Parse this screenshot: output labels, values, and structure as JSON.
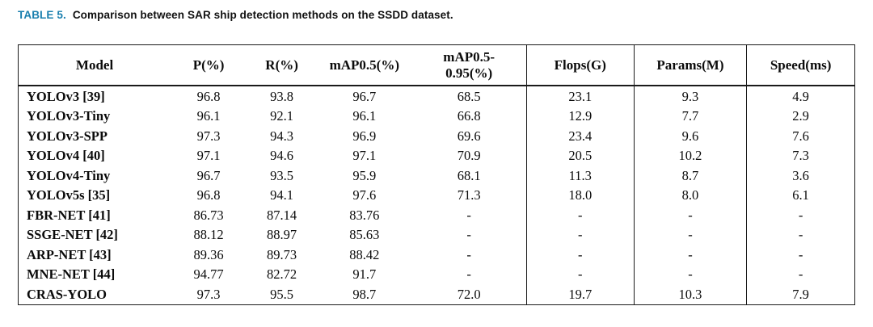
{
  "caption": {
    "label": "TABLE 5.",
    "text": "Comparison between SAR ship detection methods on the SSDD dataset."
  },
  "colors": {
    "caption_label": "#1a7fae",
    "text": "#0b0b0b",
    "border": "#1a1a1a"
  },
  "chart_data": {
    "type": "table",
    "title": "Comparison between SAR ship detection methods on the SSDD dataset",
    "columns": [
      "Model",
      "P(%)",
      "R(%)",
      "mAP0.5(%)",
      "mAP0.5-\n0.95(%)",
      "Flops(G)",
      "Params(M)",
      "Speed(ms)"
    ],
    "rows": [
      [
        "YOLOv3 [39]",
        "96.8",
        "93.8",
        "96.7",
        "68.5",
        "23.1",
        "9.3",
        "4.9"
      ],
      [
        "YOLOv3-Tiny",
        "96.1",
        "92.1",
        "96.1",
        "66.8",
        "12.9",
        "7.7",
        "2.9"
      ],
      [
        "YOLOv3-SPP",
        "97.3",
        "94.3",
        "96.9",
        "69.6",
        "23.4",
        "9.6",
        "7.6"
      ],
      [
        "YOLOv4 [40]",
        "97.1",
        "94.6",
        "97.1",
        "70.9",
        "20.5",
        "10.2",
        "7.3"
      ],
      [
        "YOLOv4-Tiny",
        "96.7",
        "93.5",
        "95.9",
        "68.1",
        "11.3",
        "8.7",
        "3.6"
      ],
      [
        "YOLOv5s [35]",
        "96.8",
        "94.1",
        "97.6",
        "71.3",
        "18.0",
        "8.0",
        "6.1"
      ],
      [
        "FBR-NET [41]",
        "86.73",
        "87.14",
        "83.76",
        "-",
        "-",
        "-",
        "-"
      ],
      [
        "SSGE-NET [42]",
        "88.12",
        "88.97",
        "85.63",
        "-",
        "-",
        "-",
        "-"
      ],
      [
        "ARP-NET [43]",
        "89.36",
        "89.73",
        "88.42",
        "-",
        "-",
        "-",
        "-"
      ],
      [
        "MNE-NET [44]",
        "94.77",
        "82.72",
        "91.7",
        "-",
        "-",
        "-",
        "-"
      ],
      [
        "CRAS-YOLO",
        "97.3",
        "95.5",
        "98.7",
        "72.0",
        "19.7",
        "10.3",
        "7.9"
      ]
    ]
  }
}
